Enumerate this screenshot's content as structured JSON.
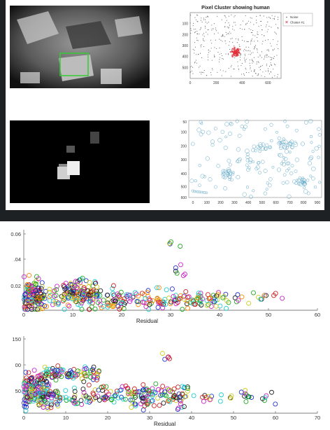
{
  "chart_data": [
    {
      "type": "image",
      "panel": "top-left",
      "description_visible": "grayscale overhead camera frame of a room with a person lying on a bed, highlighted by a green box"
    },
    {
      "type": "scatter",
      "panel": "top-middle-right",
      "title": "Pixel Cluster showing human",
      "xlim": [
        0,
        700
      ],
      "ylim": [
        0,
        600
      ],
      "x_ticks": [
        "0",
        "200",
        "400",
        "600"
      ],
      "y_ticks": [
        "100",
        "200",
        "300",
        "400",
        "500"
      ],
      "legend": {
        "placement": "top-right",
        "entries": [
          "Noise",
          "Cluster #1"
        ]
      },
      "series": [
        {
          "name": "Noise",
          "color": "#555555",
          "marker": "dot"
        },
        {
          "name": "Cluster #1",
          "color": "#e0303a",
          "marker": "x",
          "center": [
            350,
            360
          ]
        }
      ]
    },
    {
      "type": "image",
      "panel": "bottom-left",
      "description_visible": "black background with a few bright gray and white rectangular blobs"
    },
    {
      "type": "scatter",
      "panel": "bottom-right",
      "xlim": [
        0,
        500
      ],
      "ylim": [
        0,
        600
      ],
      "x_ticks": [
        "0",
        "100",
        "200",
        "300",
        "400",
        "500",
        "600",
        "700",
        "800",
        "900"
      ],
      "y_ticks": [
        "50",
        "100",
        "200",
        "300",
        "400",
        "500",
        "600"
      ],
      "series": [
        {
          "color": "#5fa8c8",
          "marker": "circle"
        }
      ]
    },
    {
      "type": "scatter",
      "panel": "residual-upper",
      "xlabel": "Residual",
      "xlim": [
        0,
        60
      ],
      "ylim": [
        0,
        0.06
      ],
      "x_ticks": [
        "0",
        "10",
        "20",
        "30",
        "40",
        "50",
        "60"
      ],
      "y_ticks": [
        "0.06",
        ".04",
        "0.02"
      ],
      "colors": [
        "#2233cc",
        "#cc2222",
        "#22aa22",
        "#cccc22",
        "#22cccc",
        "#cc22cc",
        "#222222",
        "#ff8800"
      ]
    },
    {
      "type": "scatter",
      "panel": "residual-lower",
      "xlabel": "Residual",
      "xlim": [
        0,
        70
      ],
      "ylim": [
        0,
        150
      ],
      "x_ticks": [
        "0",
        "10",
        "20",
        "30",
        "40",
        "50",
        "60",
        "70"
      ],
      "y_ticks": [
        "150",
        "00",
        "50"
      ],
      "colors": [
        "#2233cc",
        "#cc2222",
        "#22aa22",
        "#cccc22",
        "#22cccc",
        "#cc22cc",
        "#222222"
      ]
    }
  ]
}
